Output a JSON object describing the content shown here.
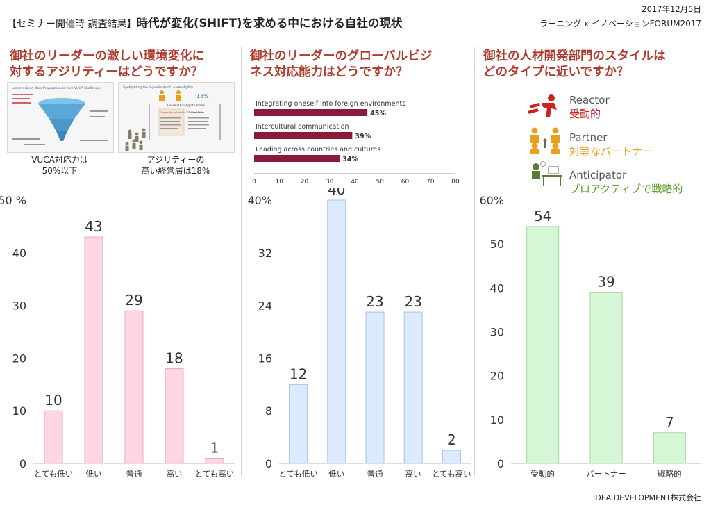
{
  "header": {
    "bracket_text": "【セミナー開催時 調査結果】",
    "title": "時代が変化(SHIFT)を求める中における自社の現状",
    "date": "2017年12月5日",
    "event": "ラーニング x イノベーションFORUM2017"
  },
  "footer": {
    "company": "IDEA DEVELOPMENT株式会社"
  },
  "panels": [
    {
      "question_line1": "御社のリーダーの激しい環境変化に",
      "question_line2": "対するアジリティーはどうですか？",
      "thumb1_caption_line1": "VUCA対応力は",
      "thumb1_caption_line2": "50%以下",
      "thumb2_caption_line1": "アジリティーの",
      "thumb2_caption_line2": "高い経営層は18%",
      "thumb1_title": "Leaders Need More Preparation to Face VUCA Challenges",
      "thumb2_title": "Spotlighting the Ingredients of Leader Agility",
      "thumb2_stat": "18%",
      "thumb2_sub": "Leadership Agility Index",
      "thumb2_box": "Capability to Meet VUCA Challenges",
      "thumb2_col2": "Critical Skills"
    },
    {
      "question_line1": "御社のリーダーのグローバルビジ",
      "question_line2": "ネス対応能力はどうですか？",
      "inset_chart": {
        "items": [
          {
            "label": "Integrating oneself into foreign environments",
            "value": 45,
            "value_label": "45%"
          },
          {
            "label": "Intercultural communication",
            "value": 39,
            "value_label": "39%"
          },
          {
            "label": "Leading across countries and cultures",
            "value": 34,
            "value_label": "34%"
          }
        ],
        "ticks": [
          "0",
          "10",
          "20",
          "30",
          "40",
          "50",
          "60",
          "70",
          "80"
        ]
      }
    },
    {
      "question_line1": "御社の人材開発部門のスタイルは",
      "question_line2": "どのタイプに近いですか？",
      "legend": [
        {
          "en": "Reactor",
          "ja": "受動的",
          "icon": "running-person-icon",
          "color": "#cc2222"
        },
        {
          "en": "Partner",
          "ja": "対等なパートナー",
          "icon": "partner-people-icon",
          "color": "#e8a020"
        },
        {
          "en": "Anticipator",
          "ja": "プロアクティブで戦略的",
          "icon": "desk-worker-icon",
          "color": "#5a9a2a"
        }
      ]
    }
  ],
  "chart_data": [
    {
      "type": "bar",
      "categories": [
        "とても低い",
        "低い",
        "普通",
        "高い",
        "とても高い"
      ],
      "values": [
        10,
        43,
        29,
        18,
        1
      ],
      "ylim": [
        0,
        50
      ],
      "yticks": [
        "0",
        "10",
        "20",
        "30",
        "40",
        "50 %"
      ],
      "bar_color": "#fdd5e3",
      "bar_stroke": "#e8a6bf"
    },
    {
      "type": "bar",
      "categories": [
        "とても低い",
        "低い",
        "普通",
        "高い",
        "とても高い"
      ],
      "values": [
        12,
        40,
        23,
        23,
        2
      ],
      "ylim": [
        0,
        40
      ],
      "yticks": [
        "0",
        "8",
        "16",
        "24",
        "32",
        "40%"
      ],
      "bar_color": "#dbeafd",
      "bar_stroke": "#a6c4e8"
    },
    {
      "type": "bar",
      "categories": [
        "受動的",
        "パートナー",
        "戦略的"
      ],
      "values": [
        54,
        39,
        7
      ],
      "ylim": [
        0,
        60
      ],
      "yticks": [
        "0",
        "10",
        "20",
        "30",
        "40",
        "50",
        "60%"
      ],
      "bar_color": "#d5f7d5",
      "bar_stroke": "#a3d6a3"
    }
  ]
}
